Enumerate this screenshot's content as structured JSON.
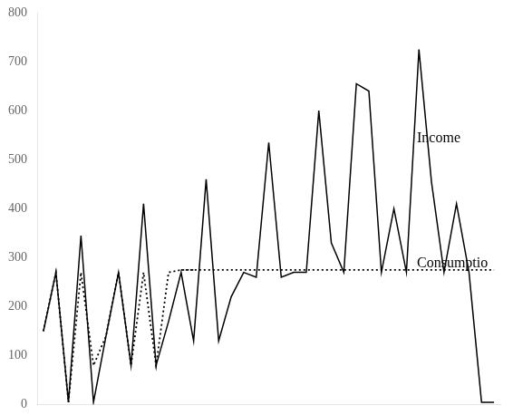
{
  "chart_data": {
    "type": "line",
    "color": "#000000",
    "xlim": [
      -0.5,
      36.5
    ],
    "ylim": [
      0,
      800
    ],
    "yticks": [
      0,
      100,
      200,
      300,
      400,
      500,
      600,
      700,
      800
    ],
    "grid": false,
    "tick_labels": "y",
    "annotations": [
      {
        "text": "Income"
      },
      {
        "text": "Consumptio"
      }
    ],
    "series": [
      {
        "line_style": "solid",
        "x": [
          0,
          1,
          2,
          3,
          4,
          5,
          6,
          7,
          8,
          9,
          10,
          11,
          12,
          13,
          14,
          15,
          16,
          17,
          18,
          19,
          20,
          21,
          22,
          23,
          24,
          25,
          26,
          27,
          28,
          29,
          30,
          31,
          32,
          32,
          33,
          34,
          35,
          36
        ],
        "values": [
          150,
          270,
          5,
          345,
          5,
          140,
          270,
          80,
          410,
          80,
          170,
          270,
          130,
          460,
          130,
          220,
          270,
          260,
          535,
          260,
          270,
          270,
          600,
          330,
          270,
          655,
          640,
          270,
          400,
          270,
          725,
          455,
          270,
          270,
          410,
          270,
          5,
          5
        ]
      },
      {
        "line_style": "dotted",
        "x": [
          0,
          1,
          2,
          3,
          4,
          5,
          6,
          7,
          8,
          9,
          10,
          11,
          12
        ],
        "values": [
          150,
          270,
          5,
          270,
          80,
          140,
          270,
          80,
          270,
          80,
          270,
          275,
          275
        ]
      },
      {
        "line_style": "dotted",
        "x": [
          11,
          36
        ],
        "values": [
          275,
          275
        ]
      }
    ]
  }
}
